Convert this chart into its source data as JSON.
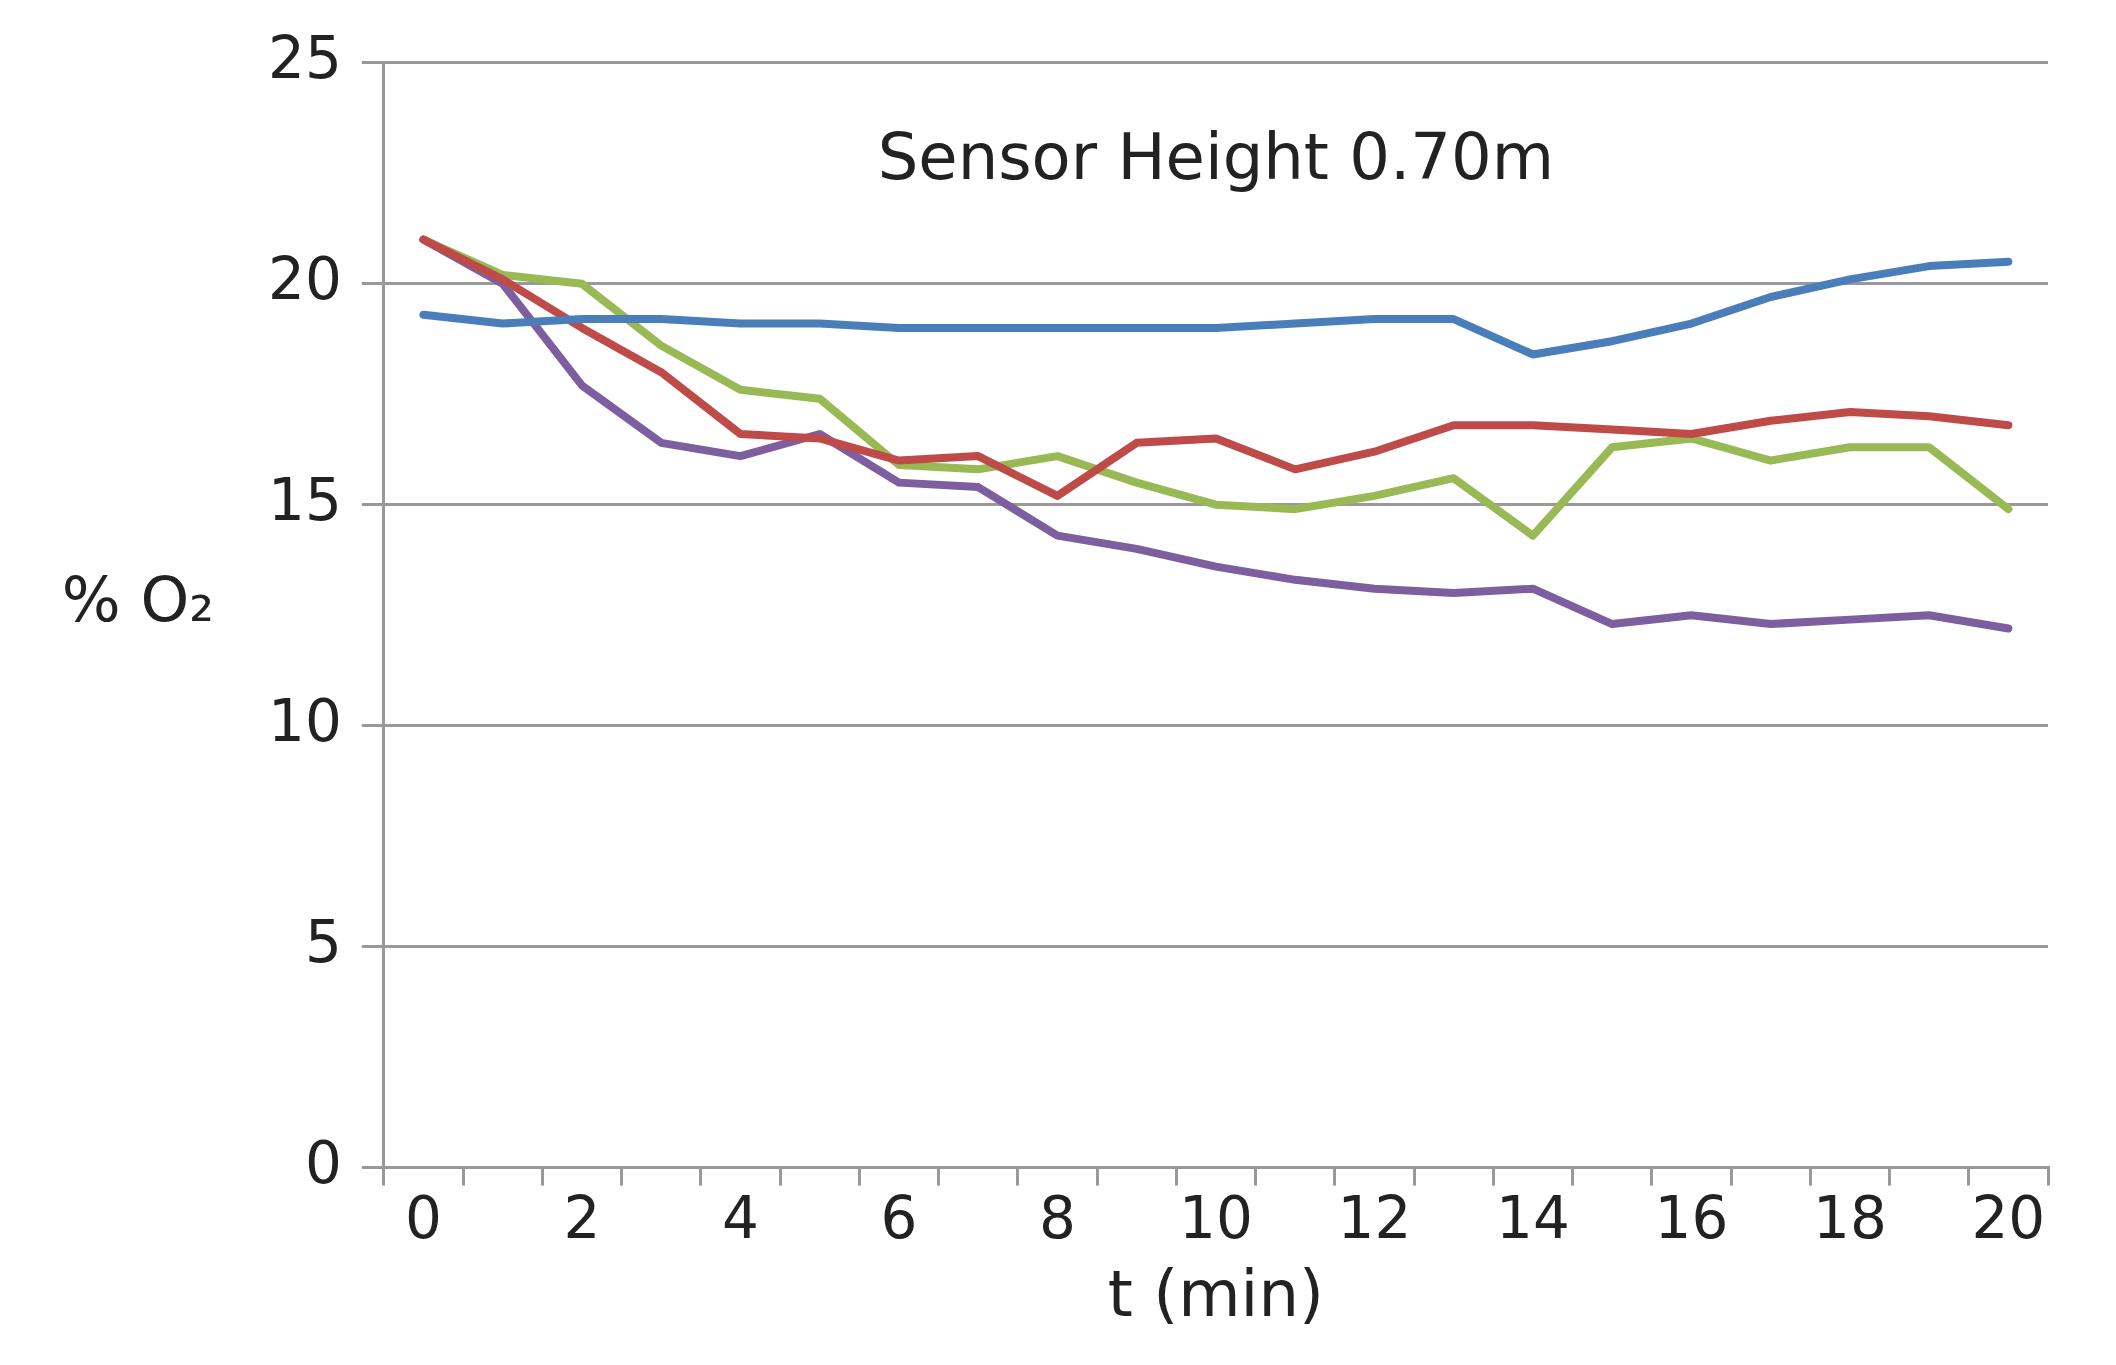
{
  "chart_data": {
    "type": "line",
    "title": "Sensor Height 0.70m",
    "xlabel": "t (min)",
    "ylabel": "% O₂",
    "categories": [
      "0",
      null,
      "2",
      null,
      "4",
      null,
      "6",
      null,
      "8",
      null,
      "10",
      null,
      "12",
      null,
      "14",
      null,
      "16",
      null,
      "18",
      null,
      "20"
    ],
    "series": [
      {
        "color": "#4a7ebb",
        "values": [
          19.3,
          19.1,
          19.2,
          19.2,
          19.1,
          19.1,
          19.0,
          19.0,
          19.0,
          19.0,
          19.0,
          19.1,
          19.2,
          19.2,
          18.4,
          18.7,
          19.1,
          19.7,
          20.1,
          20.4,
          20.5
        ]
      },
      {
        "color": "#be4b48",
        "values": [
          21.0,
          20.1,
          19.0,
          18.0,
          16.6,
          16.5,
          16.0,
          16.1,
          15.2,
          16.4,
          16.5,
          15.8,
          16.2,
          16.8,
          16.8,
          16.7,
          16.6,
          16.9,
          17.1,
          17.0,
          16.8
        ]
      },
      {
        "color": "#98b954",
        "values": [
          21.0,
          20.2,
          20.0,
          18.6,
          17.6,
          17.4,
          15.9,
          15.8,
          16.1,
          15.5,
          15.0,
          14.9,
          15.2,
          15.6,
          14.3,
          16.3,
          16.5,
          16.0,
          16.3,
          16.3,
          14.9
        ]
      },
      {
        "color": "#7d5fa0",
        "values": [
          21.0,
          20.0,
          17.7,
          16.4,
          16.1,
          16.6,
          15.5,
          15.4,
          14.3,
          14.0,
          13.6,
          13.3,
          13.1,
          13.0,
          13.1,
          12.3,
          12.5,
          12.3,
          12.4,
          12.5,
          12.2
        ]
      }
    ],
    "ylim": [
      0,
      25
    ],
    "yticks": [
      0,
      5,
      10,
      15,
      20,
      25
    ],
    "grid": "y",
    "legend": false,
    "marker": "none",
    "line_style": "solid"
  }
}
